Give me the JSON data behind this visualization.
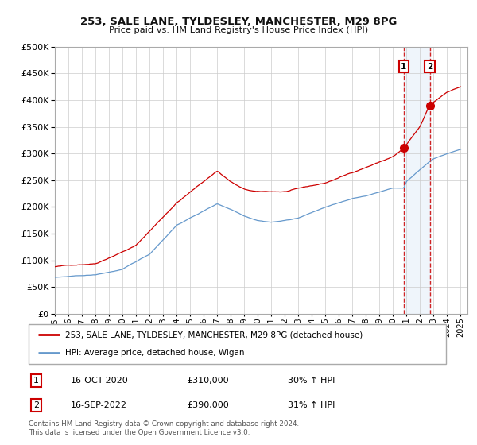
{
  "title": "253, SALE LANE, TYLDESLEY, MANCHESTER, M29 8PG",
  "subtitle": "Price paid vs. HM Land Registry's House Price Index (HPI)",
  "legend_line1": "253, SALE LANE, TYLDESLEY, MANCHESTER, M29 8PG (detached house)",
  "legend_line2": "HPI: Average price, detached house, Wigan",
  "annotation1_date": "16-OCT-2020",
  "annotation1_price": "£310,000",
  "annotation1_hpi": "30% ↑ HPI",
  "annotation2_date": "16-SEP-2022",
  "annotation2_price": "£390,000",
  "annotation2_hpi": "31% ↑ HPI",
  "footer": "Contains HM Land Registry data © Crown copyright and database right 2024.\nThis data is licensed under the Open Government Licence v3.0.",
  "red_color": "#cc0000",
  "blue_color": "#6699cc",
  "background_color": "#ffffff",
  "grid_color": "#cccccc",
  "highlight_color": "#ddeeff",
  "sale1_year": 2020.79,
  "sale1_price": 310000,
  "sale2_year": 2022.71,
  "sale2_price": 390000,
  "ylim": [
    0,
    500000
  ],
  "yticks": [
    0,
    50000,
    100000,
    150000,
    200000,
    250000,
    300000,
    350000,
    400000,
    450000,
    500000
  ],
  "xstart": 1995,
  "xend": 2025
}
